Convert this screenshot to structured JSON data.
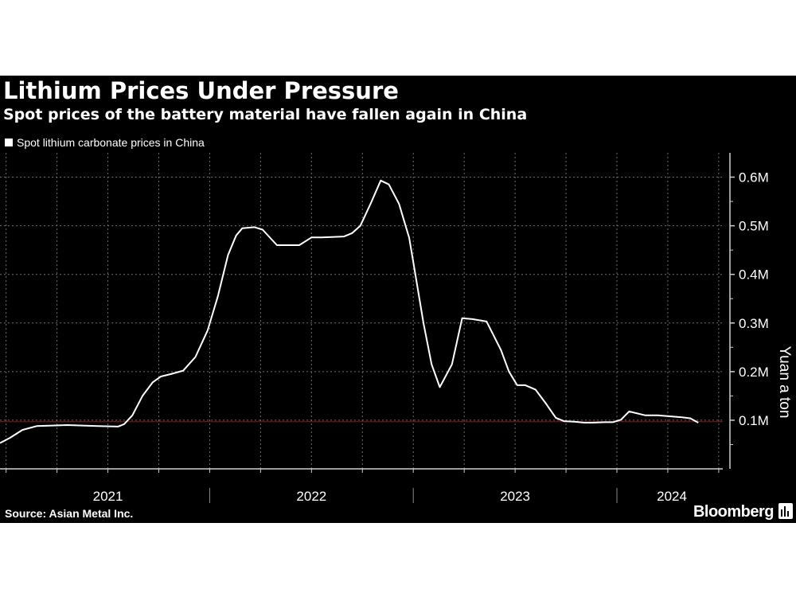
{
  "chart_data": {
    "type": "line",
    "title": "Lithium Prices Under Pressure",
    "subtitle": "Spot prices of the battery material have fallen again in China",
    "ylabel": "Yuan a ton",
    "xlabel": "",
    "ylim": [
      0,
      650000
    ],
    "y_ticks": [
      {
        "value": 100000,
        "label": "0.1M"
      },
      {
        "value": 200000,
        "label": "0.2M"
      },
      {
        "value": 300000,
        "label": "0.3M"
      },
      {
        "value": 400000,
        "label": "0.4M"
      },
      {
        "value": 500000,
        "label": "0.5M"
      },
      {
        "value": 600000,
        "label": "0.6M"
      }
    ],
    "x_range": [
      2020.97,
      2024.52
    ],
    "year_labels": [
      {
        "value": 2021.5,
        "label": "2021"
      },
      {
        "value": 2022.5,
        "label": "2022"
      },
      {
        "value": 2023.5,
        "label": "2023"
      },
      {
        "value": 2024.27,
        "label": "2024"
      }
    ],
    "year_boundaries": [
      2022.0,
      2023.0,
      2024.0
    ],
    "reference_line": {
      "value": 97000,
      "color": "#8b1a1a"
    },
    "series": [
      {
        "name": "Spot lithium carbonate prices in China",
        "color": "#ffffff",
        "x": [
          2020.97,
          2021.02,
          2021.08,
          2021.15,
          2021.3,
          2021.45,
          2021.55,
          2021.58,
          2021.62,
          2021.67,
          2021.72,
          2021.76,
          2021.81,
          2021.87,
          2021.93,
          2021.99,
          2022.04,
          2022.09,
          2022.13,
          2022.16,
          2022.22,
          2022.26,
          2022.33,
          2022.44,
          2022.5,
          2022.55,
          2022.6,
          2022.66,
          2022.7,
          2022.74,
          2022.79,
          2022.84,
          2022.88,
          2022.93,
          2022.98,
          2023.01,
          2023.05,
          2023.09,
          2023.13,
          2023.19,
          2023.24,
          2023.29,
          2023.36,
          2023.43,
          2023.47,
          2023.51,
          2023.55,
          2023.6,
          2023.65,
          2023.7,
          2023.74,
          2023.79,
          2023.84,
          2023.88,
          2023.94,
          2023.98,
          2024.02,
          2024.06,
          2024.14,
          2024.2,
          2024.26,
          2024.32,
          2024.36,
          2024.4
        ],
        "values": [
          53000,
          64000,
          80000,
          88000,
          90000,
          88000,
          87000,
          92000,
          110000,
          150000,
          178000,
          190000,
          195000,
          202000,
          230000,
          285000,
          355000,
          440000,
          480000,
          495000,
          497000,
          492000,
          460000,
          460000,
          476000,
          476000,
          477000,
          478000,
          485000,
          500000,
          545000,
          593000,
          585000,
          545000,
          475000,
          400000,
          300000,
          215000,
          168000,
          215000,
          310000,
          308000,
          303000,
          245000,
          200000,
          172000,
          172000,
          163000,
          135000,
          105000,
          98000,
          97000,
          95000,
          95000,
          96000,
          96000,
          101000,
          118000,
          110000,
          110000,
          108000,
          106000,
          104000,
          95000
        ]
      }
    ]
  },
  "legend_label": "Spot lithium carbonate prices in China",
  "footer": {
    "source": "Source: Asian Metal Inc.",
    "brand": "Bloomberg"
  },
  "colors": {
    "background": "#000000",
    "line": "#ffffff",
    "grid": "#6e6e6e",
    "reference": "#8b1a1a"
  }
}
